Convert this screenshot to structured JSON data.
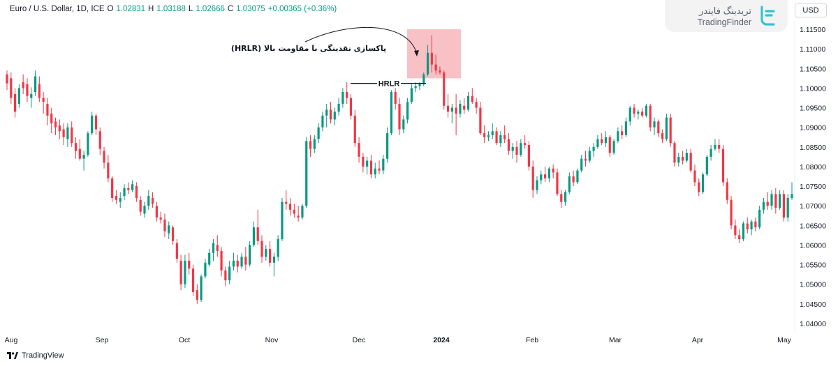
{
  "header": {
    "symbol": "Euro / U.S. Dollar, 1D, ICE",
    "o_label": "O",
    "o_value": "1.02831",
    "h_label": "H",
    "h_value": "1.03188",
    "l_label": "L",
    "l_value": "1.02666",
    "c_label": "C",
    "c_value": "1.03075",
    "change": "+0.00365 (+0.36%)"
  },
  "logo": {
    "text_fa": "تریدینگ فایندر",
    "text_en": "TradingFinder",
    "icon": "tradingfinder-logo-icon"
  },
  "currency_button": "USD",
  "footer_brand": "TradingView",
  "colors": {
    "up": "#089981",
    "down": "#f23645",
    "zone": "#f7b6bb"
  },
  "annotations": {
    "hrlr_label": "HRLR",
    "sweep_label": "پاکسازی نقدینگی با مقاومت بالا (HRLR)"
  },
  "chart_data": {
    "type": "candlestick",
    "x_tick_labels": [
      "Aug",
      "Sep",
      "Oct",
      "Nov",
      "Dec",
      "2024",
      "Feb",
      "Mar",
      "Apr",
      "May"
    ],
    "y_tick_labels": [
      "1.11500",
      "1.11000",
      "1.10500",
      "1.10000",
      "1.09500",
      "1.09000",
      "1.08500",
      "1.08000",
      "1.07500",
      "1.07000",
      "1.06500",
      "1.06000",
      "1.05500",
      "1.05000",
      "1.04500",
      "1.04000"
    ],
    "ylim": [
      1.036,
      1.1185
    ],
    "price_axis_side": "right",
    "grid": false,
    "candles": [
      [
        1.1035,
        1.1045,
        1.0995,
        1.1012
      ],
      [
        1.1025,
        1.104,
        1.096,
        1.0975
      ],
      [
        1.0985,
        1.1,
        1.0925,
        1.094
      ],
      [
        1.096,
        1.101,
        1.095,
        1.1
      ],
      [
        1.1015,
        1.1035,
        1.0985,
        1.1
      ],
      [
        1.101,
        1.1025,
        1.0965,
        1.098
      ],
      [
        1.0975,
        1.1002,
        1.095,
        1.0985
      ],
      [
        1.099,
        1.1045,
        1.098,
        1.103
      ],
      [
        1.101,
        1.103,
        1.0965,
        1.0975
      ],
      [
        1.0975,
        1.099,
        1.0935,
        1.0965
      ],
      [
        1.096,
        1.0975,
        1.0905,
        1.093
      ],
      [
        1.0935,
        1.095,
        1.0885,
        1.091
      ],
      [
        1.0915,
        1.0925,
        1.088,
        1.09
      ],
      [
        1.0905,
        1.092,
        1.087,
        1.089
      ],
      [
        1.0895,
        1.091,
        1.0855,
        1.0875
      ],
      [
        1.087,
        1.091,
        1.085,
        1.09
      ],
      [
        1.09,
        1.0915,
        1.085,
        1.086
      ],
      [
        1.086,
        1.0875,
        1.082,
        1.084
      ],
      [
        1.0845,
        1.087,
        1.0815,
        1.082
      ],
      [
        1.082,
        1.084,
        1.079,
        1.083
      ],
      [
        1.083,
        1.089,
        1.0825,
        1.0885
      ],
      [
        1.0885,
        1.094,
        1.088,
        1.093
      ],
      [
        1.093,
        1.0935,
        1.088,
        1.0895
      ],
      [
        1.089,
        1.09,
        1.083,
        1.0845
      ],
      [
        1.084,
        1.085,
        1.0795,
        1.081
      ],
      [
        1.081,
        1.083,
        1.076,
        1.077
      ],
      [
        1.077,
        1.0775,
        1.071,
        1.072
      ],
      [
        1.0725,
        1.074,
        1.0705,
        1.0715
      ],
      [
        1.071,
        1.0735,
        1.0695,
        1.072
      ],
      [
        1.0725,
        1.0755,
        1.0715,
        1.0745
      ],
      [
        1.0745,
        1.076,
        1.073,
        1.074
      ],
      [
        1.074,
        1.0765,
        1.0735,
        1.0755
      ],
      [
        1.075,
        1.076,
        1.071,
        1.072
      ],
      [
        1.0715,
        1.0725,
        1.0675,
        1.0685
      ],
      [
        1.068,
        1.071,
        1.067,
        1.07
      ],
      [
        1.07,
        1.074,
        1.069,
        1.0725
      ],
      [
        1.072,
        1.0735,
        1.0695,
        1.0705
      ],
      [
        1.07,
        1.071,
        1.066,
        1.067
      ],
      [
        1.067,
        1.0685,
        1.0655,
        1.0665
      ],
      [
        1.0665,
        1.068,
        1.062,
        1.0635
      ],
      [
        1.063,
        1.066,
        1.0615,
        1.065
      ],
      [
        1.0645,
        1.065,
        1.06,
        1.061
      ],
      [
        1.0605,
        1.0615,
        1.0555,
        1.0565
      ],
      [
        1.056,
        1.0575,
        1.0485,
        1.05
      ],
      [
        1.05,
        1.0575,
        1.049,
        1.056
      ],
      [
        1.056,
        1.058,
        1.0525,
        1.054
      ],
      [
        1.054,
        1.055,
        1.047,
        1.048
      ],
      [
        1.0485,
        1.05,
        1.045,
        1.046
      ],
      [
        1.046,
        1.0525,
        1.0455,
        1.052
      ],
      [
        1.052,
        1.0565,
        1.0515,
        1.0555
      ],
      [
        1.055,
        1.059,
        1.0545,
        1.058
      ],
      [
        1.058,
        1.0615,
        1.056,
        1.0605
      ],
      [
        1.06,
        1.0625,
        1.057,
        1.0585
      ],
      [
        1.0585,
        1.0595,
        1.052,
        1.0535
      ],
      [
        1.0535,
        1.0545,
        1.0495,
        1.051
      ],
      [
        1.051,
        1.056,
        1.05,
        1.0545
      ],
      [
        1.0545,
        1.058,
        1.0535,
        1.056
      ],
      [
        1.056,
        1.0575,
        1.053,
        1.0545
      ],
      [
        1.0545,
        1.058,
        1.054,
        1.057
      ],
      [
        1.057,
        1.0595,
        1.0535,
        1.055
      ],
      [
        1.055,
        1.061,
        1.0545,
        1.06
      ],
      [
        1.06,
        1.066,
        1.0595,
        1.0645
      ],
      [
        1.0645,
        1.069,
        1.06,
        1.061
      ],
      [
        1.061,
        1.0625,
        1.0555,
        1.057
      ],
      [
        1.057,
        1.06,
        1.056,
        1.059
      ],
      [
        1.059,
        1.061,
        1.0545,
        1.0555
      ],
      [
        1.0555,
        1.058,
        1.052,
        1.057
      ],
      [
        1.057,
        1.0625,
        1.056,
        1.0615
      ],
      [
        1.0615,
        1.072,
        1.061,
        1.071
      ],
      [
        1.071,
        1.074,
        1.069,
        1.0705
      ],
      [
        1.0705,
        1.072,
        1.0675,
        1.069
      ],
      [
        1.069,
        1.0705,
        1.067,
        1.068
      ],
      [
        1.0675,
        1.07,
        1.066,
        1.067
      ],
      [
        1.067,
        1.0705,
        1.0665,
        1.07
      ],
      [
        1.07,
        1.0875,
        1.0695,
        1.0865
      ],
      [
        1.0865,
        1.088,
        1.0825,
        1.0845
      ],
      [
        1.0845,
        1.088,
        1.0835,
        1.087
      ],
      [
        1.087,
        1.091,
        1.086,
        1.09
      ],
      [
        1.09,
        1.094,
        1.089,
        1.093
      ],
      [
        1.093,
        1.096,
        1.09,
        1.0945
      ],
      [
        1.0945,
        1.0965,
        1.091,
        1.092
      ],
      [
        1.092,
        1.095,
        1.0905,
        1.094
      ],
      [
        1.094,
        1.0975,
        1.093,
        1.096
      ],
      [
        1.096,
        1.1,
        1.095,
        1.099
      ],
      [
        1.099,
        1.1015,
        1.096,
        1.0975
      ],
      [
        1.0975,
        1.0985,
        1.092,
        1.093
      ],
      [
        1.093,
        1.0945,
        1.085,
        1.086
      ],
      [
        1.086,
        1.0875,
        1.081,
        1.0825
      ],
      [
        1.0825,
        1.0835,
        1.0785,
        1.08
      ],
      [
        1.08,
        1.0825,
        1.078,
        1.0815
      ],
      [
        1.0815,
        1.083,
        1.077,
        1.078
      ],
      [
        1.078,
        1.081,
        1.077,
        1.0795
      ],
      [
        1.0795,
        1.0815,
        1.078,
        1.079
      ],
      [
        1.079,
        1.083,
        1.078,
        1.082
      ],
      [
        1.082,
        1.09,
        1.081,
        1.0885
      ],
      [
        1.0885,
        1.0995,
        1.088,
        1.099
      ],
      [
        1.099,
        1.1,
        1.0945,
        1.096
      ],
      [
        1.096,
        1.0975,
        1.088,
        1.0895
      ],
      [
        1.0895,
        1.093,
        1.0885,
        1.092
      ],
      [
        1.092,
        1.0975,
        1.091,
        1.0965
      ],
      [
        1.0965,
        1.101,
        1.096,
        1.1
      ],
      [
        1.1,
        1.1015,
        1.099,
        1.1005
      ],
      [
        1.1005,
        1.1015,
        1.0995,
        1.101
      ],
      [
        1.101,
        1.104,
        1.1005,
        1.1035
      ],
      [
        1.1035,
        1.111,
        1.103,
        1.109
      ],
      [
        1.109,
        1.1135,
        1.104,
        1.106
      ],
      [
        1.106,
        1.1085,
        1.1035,
        1.1045
      ],
      [
        1.1045,
        1.1055,
        1.1035,
        1.104
      ],
      [
        1.104,
        1.1045,
        1.0945,
        1.0955
      ],
      [
        1.0955,
        1.0985,
        1.0925,
        1.094
      ],
      [
        1.094,
        1.096,
        1.091,
        1.095
      ],
      [
        1.095,
        1.0985,
        1.088,
        1.0935
      ],
      [
        1.0935,
        1.097,
        1.0925,
        1.096
      ],
      [
        1.0955,
        1.0975,
        1.0935,
        1.0945
      ],
      [
        1.0945,
        1.099,
        1.094,
        1.098
      ],
      [
        1.098,
        1.1,
        1.096,
        1.0965
      ],
      [
        1.0965,
        1.0975,
        1.0935,
        1.095
      ],
      [
        1.095,
        1.0965,
        1.088,
        1.0885
      ],
      [
        1.0885,
        1.0905,
        1.086,
        1.0875
      ],
      [
        1.0875,
        1.089,
        1.0865,
        1.088
      ],
      [
        1.088,
        1.091,
        1.087,
        1.089
      ],
      [
        1.089,
        1.09,
        1.0855,
        1.086
      ],
      [
        1.086,
        1.089,
        1.085,
        1.088
      ],
      [
        1.088,
        1.0905,
        1.086,
        1.087
      ],
      [
        1.087,
        1.0885,
        1.083,
        1.084
      ],
      [
        1.084,
        1.086,
        1.082,
        1.085
      ],
      [
        1.085,
        1.0865,
        1.081,
        1.083
      ],
      [
        1.083,
        1.087,
        1.0825,
        1.086
      ],
      [
        1.086,
        1.088,
        1.0845,
        1.0855
      ],
      [
        1.0855,
        1.0865,
        1.079,
        1.08
      ],
      [
        1.08,
        1.0815,
        1.072,
        1.074
      ],
      [
        1.074,
        1.0775,
        1.073,
        1.0765
      ],
      [
        1.0765,
        1.079,
        1.0755,
        1.078
      ],
      [
        1.078,
        1.08,
        1.076,
        1.077
      ],
      [
        1.077,
        1.08,
        1.076,
        1.0795
      ],
      [
        1.0795,
        1.0805,
        1.077,
        1.0785
      ],
      [
        1.0785,
        1.0795,
        1.0725,
        1.073
      ],
      [
        1.073,
        1.074,
        1.0695,
        1.071
      ],
      [
        1.071,
        1.074,
        1.07,
        1.0735
      ],
      [
        1.0735,
        1.0785,
        1.073,
        1.0775
      ],
      [
        1.0775,
        1.079,
        1.075,
        1.076
      ],
      [
        1.076,
        1.0795,
        1.0755,
        1.079
      ],
      [
        1.079,
        1.083,
        1.0785,
        1.082
      ],
      [
        1.082,
        1.084,
        1.08,
        1.0815
      ],
      [
        1.0815,
        1.085,
        1.081,
        1.084
      ],
      [
        1.084,
        1.086,
        1.0825,
        1.085
      ],
      [
        1.085,
        1.088,
        1.0845,
        1.087
      ],
      [
        1.087,
        1.0885,
        1.0855,
        1.086
      ],
      [
        1.086,
        1.089,
        1.085,
        1.0875
      ],
      [
        1.0875,
        1.088,
        1.0825,
        1.0835
      ],
      [
        1.0835,
        1.087,
        1.083,
        1.0865
      ],
      [
        1.0865,
        1.09,
        1.086,
        1.089
      ],
      [
        1.089,
        1.0905,
        1.087,
        1.088
      ],
      [
        1.088,
        1.0925,
        1.0875,
        1.0915
      ],
      [
        1.0915,
        1.0955,
        1.0905,
        1.095
      ],
      [
        1.095,
        1.096,
        1.0925,
        1.0935
      ],
      [
        1.0935,
        1.0945,
        1.092,
        1.094
      ],
      [
        1.094,
        1.095,
        1.0925,
        1.093
      ],
      [
        1.093,
        1.096,
        1.0925,
        1.0955
      ],
      [
        1.0955,
        1.096,
        1.089,
        1.09
      ],
      [
        1.09,
        1.0925,
        1.088,
        1.0915
      ],
      [
        1.0915,
        1.092,
        1.0875,
        1.0885
      ],
      [
        1.0885,
        1.0895,
        1.086,
        1.087
      ],
      [
        1.087,
        1.0935,
        1.0865,
        1.0925
      ],
      [
        1.0925,
        1.0935,
        1.085,
        1.086
      ],
      [
        1.086,
        1.0865,
        1.08,
        1.081
      ],
      [
        1.081,
        1.0835,
        1.08,
        1.0825
      ],
      [
        1.0825,
        1.084,
        1.0805,
        1.0815
      ],
      [
        1.0815,
        1.0845,
        1.081,
        1.0835
      ],
      [
        1.0835,
        1.0845,
        1.0785,
        1.079
      ],
      [
        1.079,
        1.0805,
        1.075,
        1.076
      ],
      [
        1.076,
        1.077,
        1.0725,
        1.0735
      ],
      [
        1.0735,
        1.0785,
        1.073,
        1.078
      ],
      [
        1.078,
        1.083,
        1.0775,
        1.0825
      ],
      [
        1.0825,
        1.0855,
        1.0815,
        1.0845
      ],
      [
        1.0845,
        1.087,
        1.084,
        1.0855
      ],
      [
        1.0855,
        1.087,
        1.0835,
        1.0845
      ],
      [
        1.0845,
        1.0855,
        1.075,
        1.076
      ],
      [
        1.076,
        1.077,
        1.0705,
        1.0715
      ],
      [
        1.0715,
        1.0725,
        1.064,
        1.065
      ],
      [
        1.065,
        1.0665,
        1.0615,
        1.0625
      ],
      [
        1.0625,
        1.064,
        1.0605,
        1.0615
      ],
      [
        1.0615,
        1.066,
        1.061,
        1.0655
      ],
      [
        1.0655,
        1.067,
        1.063,
        1.064
      ],
      [
        1.064,
        1.0665,
        1.0625,
        1.066
      ],
      [
        1.066,
        1.067,
        1.0635,
        1.0645
      ],
      [
        1.0645,
        1.07,
        1.064,
        1.069
      ],
      [
        1.069,
        1.072,
        1.068,
        1.071
      ],
      [
        1.071,
        1.0735,
        1.069,
        1.07
      ],
      [
        1.07,
        1.074,
        1.069,
        1.073
      ],
      [
        1.073,
        1.0745,
        1.068,
        1.0695
      ],
      [
        1.0695,
        1.074,
        1.069,
        1.073
      ],
      [
        1.073,
        1.074,
        1.066,
        1.067
      ],
      [
        1.067,
        1.073,
        1.066,
        1.072
      ],
      [
        1.072,
        1.076,
        1.0715,
        1.073
      ]
    ]
  }
}
